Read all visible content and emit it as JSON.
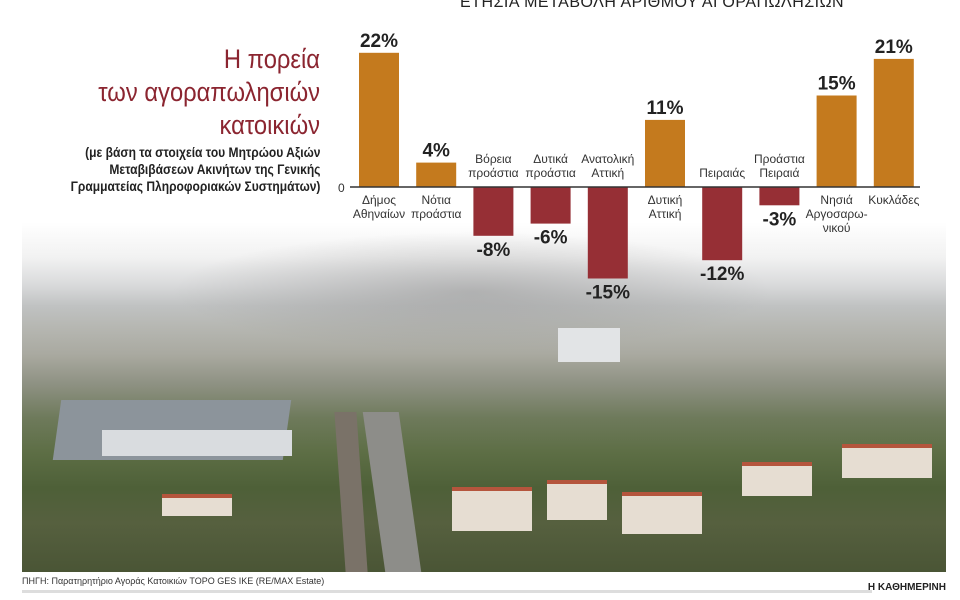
{
  "heading": {
    "title_lines": [
      "Η πορεία",
      "των αγοραπωλησιών",
      "κατοικιών"
    ],
    "subtitle_lines": [
      "(με βάση τα στοιχεία του Μητρώου Αξιών",
      "Μεταβιβάσεων Ακινήτων της Γενικής",
      "Γραμματείας Πληροφοριακών Συστημάτων)"
    ]
  },
  "chart_data": {
    "type": "bar",
    "title": "ΕΤΗΣΙΑ ΜΕΤΑΒΟΛΗ ΑΡΙΘΜΟΥ ΑΓΟΡΑΠΩΛΗΣΙΩΝ",
    "categories": [
      [
        "Δήμος",
        "Αθηναίων"
      ],
      [
        "Νότια",
        "προάστια"
      ],
      [
        "Βόρεια",
        "προάστια"
      ],
      [
        "Δυτικά",
        "προάστια"
      ],
      [
        "Ανατολική",
        "Αττική"
      ],
      [
        "Δυτική",
        "Αττική"
      ],
      [
        "Πειραιάς"
      ],
      [
        "Προάστια",
        "Πειραιά"
      ],
      [
        "Νησιά",
        "Αργοσαρω-",
        "νικού"
      ],
      [
        "Κυκλάδες"
      ]
    ],
    "values": [
      22,
      4,
      -8,
      -6,
      -15,
      11,
      -12,
      -3,
      15,
      21
    ],
    "data_labels": [
      "22%",
      "4%",
      "-8%",
      "-6%",
      "-15%",
      "11%",
      "-12%",
      "-3%",
      "15%",
      "21%"
    ],
    "unit": "%",
    "zero_label": "0",
    "colors": {
      "positive": "#c47a1e",
      "negative": "#962f35"
    },
    "grid": false
  },
  "footer": {
    "source": "ΠΗΓΗ: Παρατηρητήριο Αγοράς Κατοικιών TOPO GES IKE (RE/MAX Estate)",
    "brand": "Η ΚΑΘΗΜΕΡΙΝΗ"
  }
}
